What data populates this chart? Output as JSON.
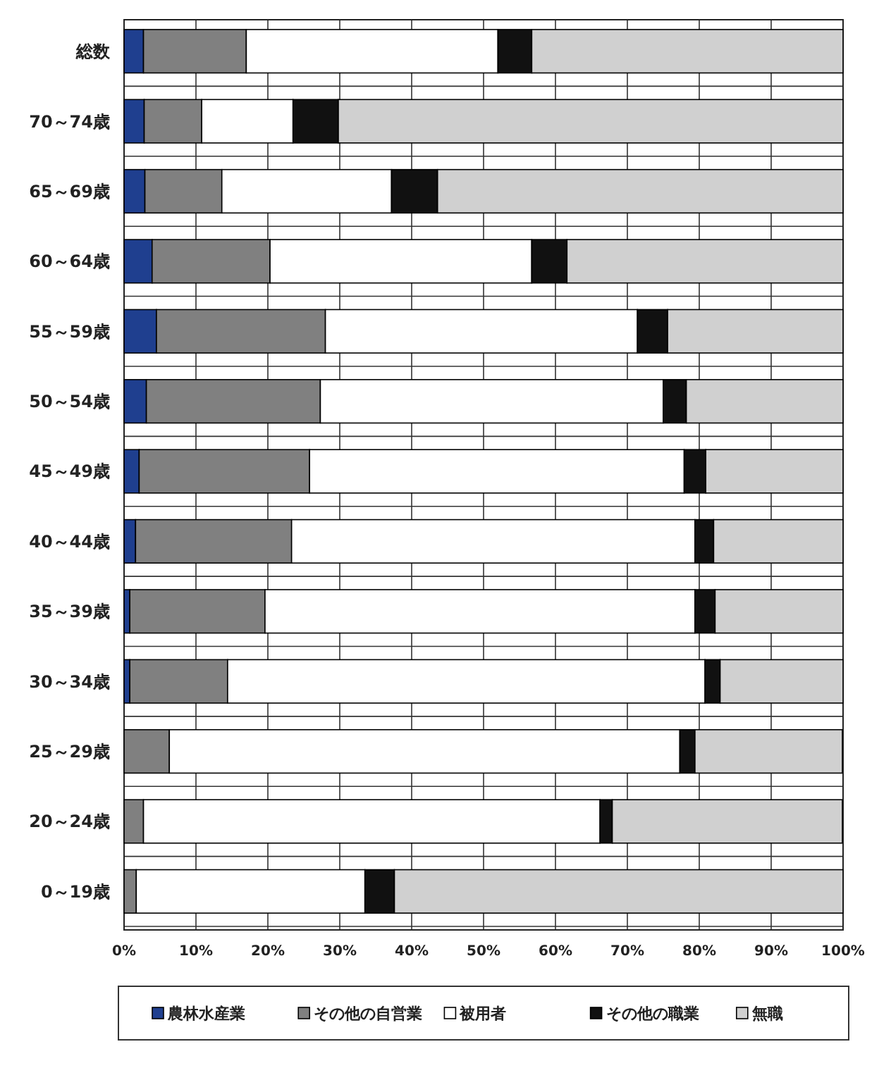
{
  "chart_data": {
    "type": "bar",
    "orientation": "horizontal",
    "stacked": true,
    "categories": [
      "総数",
      "70～74歳",
      "65～69歳",
      "60～64歳",
      "55～59歳",
      "50～54歳",
      "45～49歳",
      "40～44歳",
      "35～39歳",
      "30～34歳",
      "25～29歳",
      "20～24歳",
      "0～19歳"
    ],
    "series": [
      {
        "name": "農林水産業",
        "color": "#1f3f8f",
        "values": [
          2.7,
          2.8,
          2.9,
          3.9,
          4.5,
          3.1,
          2.1,
          1.6,
          0.8,
          0.8,
          null,
          null,
          0
        ]
      },
      {
        "name": "その他の自営業",
        "color": "#808080",
        "values": [
          14.3,
          8.0,
          10.7,
          16.4,
          23.5,
          24.2,
          23.7,
          21.7,
          18.8,
          13.6,
          6.3,
          2.7,
          1.7
        ]
      },
      {
        "name": "被用者",
        "color": "#ffffff",
        "values": [
          35.0,
          12.7,
          23.6,
          36.4,
          43.4,
          47.7,
          52.1,
          56.1,
          59.8,
          66.4,
          71.0,
          63.5,
          31.8
        ]
      },
      {
        "name": "その他の職業",
        "color": "#111111",
        "values": [
          4.7,
          6.3,
          6.4,
          4.9,
          4.2,
          3.2,
          3.0,
          2.6,
          2.8,
          2.1,
          2.1,
          1.7,
          4.1
        ]
      },
      {
        "name": "無職",
        "color": "#d0d0d0",
        "values": [
          43.3,
          70.2,
          56.4,
          38.4,
          24.4,
          21.8,
          19.1,
          18.0,
          17.8,
          17.1,
          20.5,
          32.0,
          62.4
        ]
      }
    ],
    "xlim": [
      0,
      100
    ],
    "xticks": [
      {
        "value": 0,
        "label": "0%"
      },
      {
        "value": 10,
        "label": "10%"
      },
      {
        "value": 20,
        "label": "20%"
      },
      {
        "value": 30,
        "label": "30%"
      },
      {
        "value": 40,
        "label": "40%"
      },
      {
        "value": 50,
        "label": "50%"
      },
      {
        "value": 60,
        "label": "60%"
      },
      {
        "value": 70,
        "label": "70%"
      },
      {
        "value": 80,
        "label": "80%"
      },
      {
        "value": 90,
        "label": "90%"
      },
      {
        "value": 100,
        "label": "100%"
      }
    ],
    "grid": true,
    "legend": "bottom"
  }
}
